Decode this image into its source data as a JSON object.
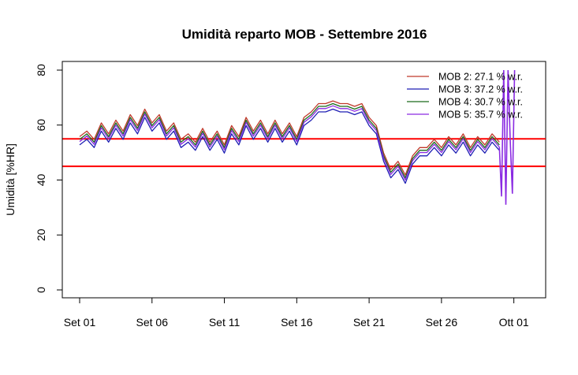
{
  "chart_data": {
    "type": "line",
    "title": "Umidità reparto MOB - Settembre 2016",
    "xlabel": "",
    "ylabel": "Umidità [%HR]",
    "xlim": [
      0,
      31
    ],
    "ylim": [
      0,
      80
    ],
    "grid": false,
    "x_ticks": [
      {
        "x": 0,
        "label": "Set 01"
      },
      {
        "x": 5,
        "label": "Set 06"
      },
      {
        "x": 10,
        "label": "Set 11"
      },
      {
        "x": 15,
        "label": "Set 16"
      },
      {
        "x": 20,
        "label": "Set 21"
      },
      {
        "x": 25,
        "label": "Set 26"
      },
      {
        "x": 30,
        "label": "Ott 01"
      }
    ],
    "y_ticks": [
      0,
      20,
      40,
      60,
      80
    ],
    "reference_lines": [
      {
        "y": 55,
        "color": "#ff0000"
      },
      {
        "y": 45,
        "color": "#ff0000"
      }
    ],
    "legend": {
      "position": "top-right",
      "entries": [
        {
          "label": "MOB 2:  27.1 % w.r.",
          "color": "#c0392b"
        },
        {
          "label": "MOB 3:  37.2 % w.r.",
          "color": "#1f1fb4"
        },
        {
          "label": "MOB 4:  30.7 % w.r.",
          "color": "#1a6b1a"
        },
        {
          "label": "MOB 5:  35.7 % w.r.",
          "color": "#8a2be2"
        }
      ]
    },
    "series_base": {
      "x": [
        0,
        0.5,
        1,
        1.5,
        2,
        2.5,
        3,
        3.5,
        4,
        4.5,
        5,
        5.5,
        6,
        6.5,
        7,
        7.5,
        8,
        8.5,
        9,
        9.5,
        10,
        10.5,
        11,
        11.5,
        12,
        12.5,
        13,
        13.5,
        14,
        14.5,
        15,
        15.5,
        16,
        16.5,
        17,
        17.5,
        18,
        18.5,
        19,
        19.5,
        20,
        20.5,
        21,
        21.5,
        22,
        22.5,
        23,
        23.5,
        24,
        24.5,
        25,
        25.5,
        26,
        26.5,
        27,
        27.5,
        28,
        28.5,
        29
      ],
      "y": [
        54,
        56,
        53,
        59,
        55,
        60,
        56,
        62,
        58,
        64,
        59,
        62,
        56,
        59,
        53,
        55,
        52,
        57,
        52,
        56,
        51,
        58,
        54,
        61,
        56,
        60,
        55,
        60,
        55,
        59,
        54,
        61,
        63,
        66,
        66,
        67,
        66,
        66,
        65,
        66,
        61,
        58,
        48,
        42,
        45,
        40,
        47,
        50,
        50,
        53,
        50,
        54,
        51,
        55,
        50,
        54,
        51,
        55,
        52
      ]
    },
    "series_offsets": [
      {
        "name": "MOB 2",
        "dy": 1.8
      },
      {
        "name": "MOB 3",
        "dy": -1.2
      },
      {
        "name": "MOB 4",
        "dy": 0.8
      },
      {
        "name": "MOB 5",
        "dy": 0.0
      }
    ],
    "spikes": {
      "x": [
        29,
        29.15,
        29.3,
        29.45,
        29.6,
        29.75,
        29.9,
        30.05
      ],
      "y": [
        52,
        34,
        80,
        31,
        80,
        54,
        35,
        80
      ]
    }
  }
}
